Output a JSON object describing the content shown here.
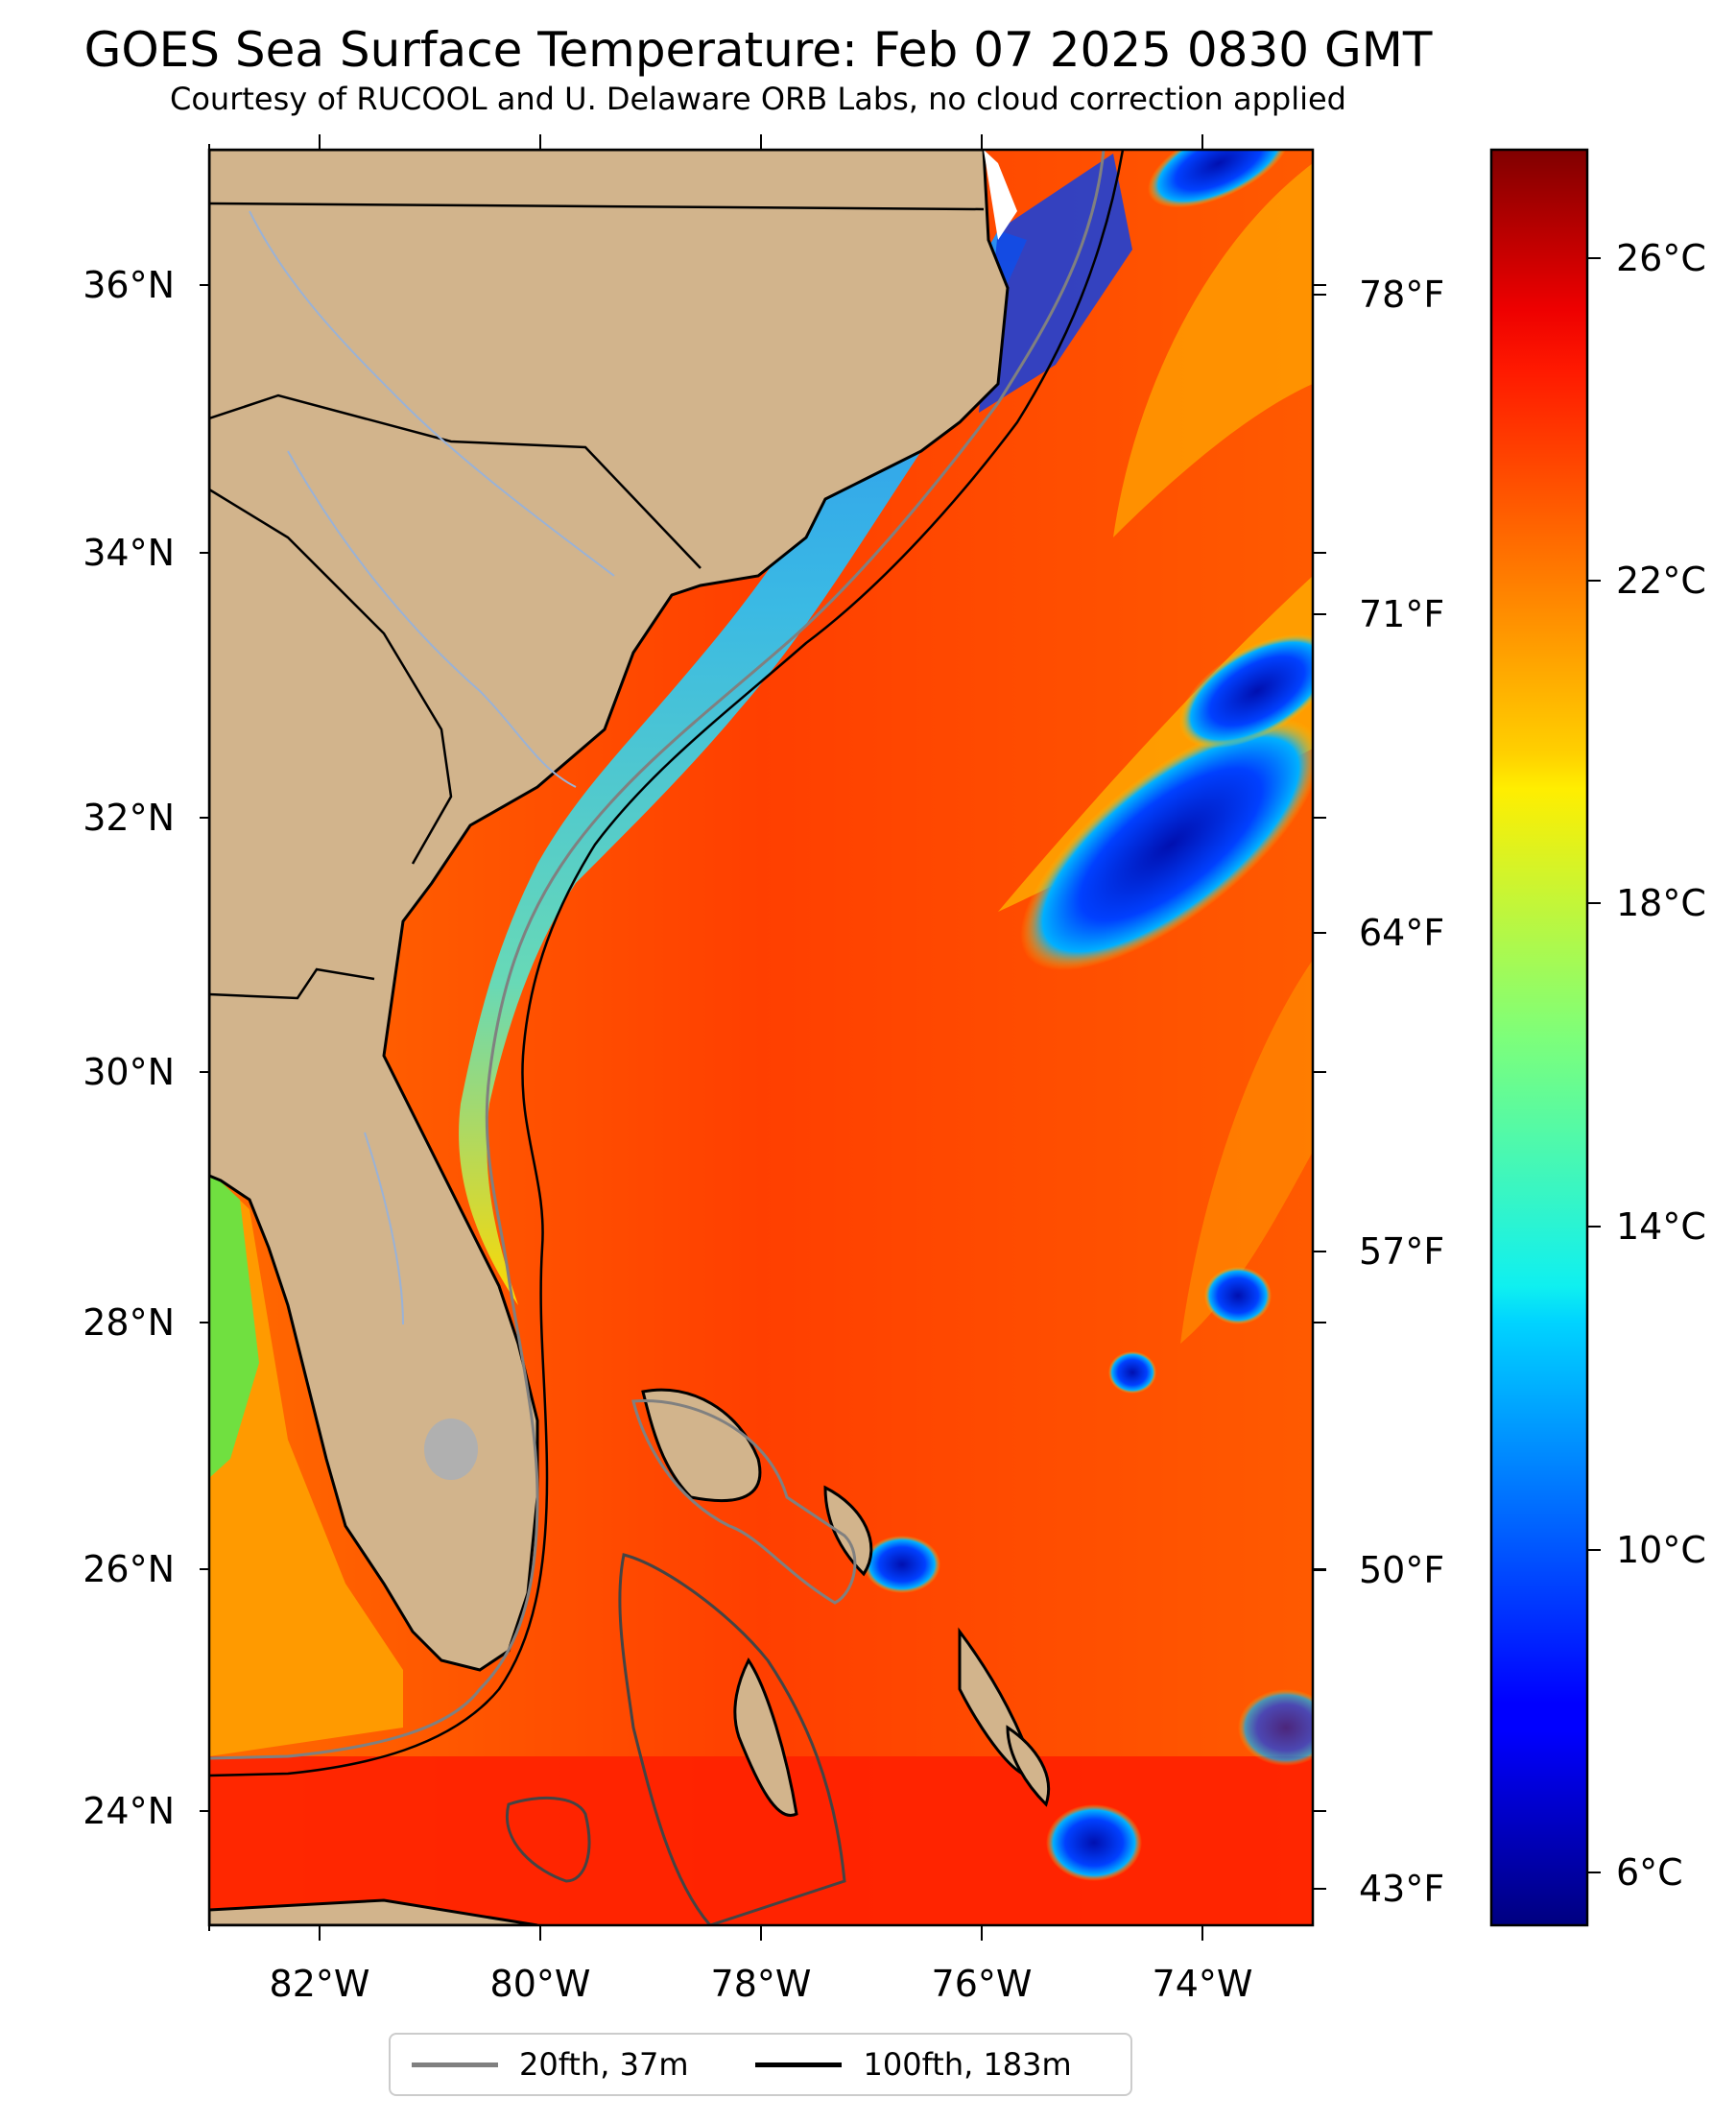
{
  "title": "GOES Sea Surface Temperature: Feb 07 2025 0830 GMT",
  "subtitle": "Courtesy of RUCOOL and U. Delaware ORB Labs, no cloud correction applied",
  "map": {
    "lon_range": [
      -83,
      -73
    ],
    "lat_range": [
      23.1,
      37.0
    ],
    "lon_ticks": [
      {
        "value": -82,
        "label": "82°W"
      },
      {
        "value": -80,
        "label": "80°W"
      },
      {
        "value": -78,
        "label": "78°W"
      },
      {
        "value": -76,
        "label": "76°W"
      },
      {
        "value": -74,
        "label": "74°W"
      }
    ],
    "lat_ticks": [
      {
        "value": 36,
        "label": "36°N"
      },
      {
        "value": 34,
        "label": "34°N"
      },
      {
        "value": 32,
        "label": "32°N"
      },
      {
        "value": 30,
        "label": "30°N"
      },
      {
        "value": 28,
        "label": "28°N"
      },
      {
        "value": 26,
        "label": "26°N"
      },
      {
        "value": 24,
        "label": "24°N"
      }
    ],
    "fahrenheit_ticks": [
      {
        "value": 78,
        "label": "78°F"
      },
      {
        "value": 71,
        "label": "71°F"
      },
      {
        "value": 64,
        "label": "64°F"
      },
      {
        "value": 57,
        "label": "57°F"
      },
      {
        "value": 50,
        "label": "50°F"
      },
      {
        "value": 43,
        "label": "43°F"
      }
    ],
    "colors": {
      "land": "#d2b48c",
      "gulf_stream": "#ff3a00",
      "shelf_water": "#40c8f0",
      "cloud_blue": "#0018c8",
      "no_data": "#ffffff"
    }
  },
  "colorbar": {
    "range_c": [
      5.5,
      27.5
    ],
    "cmap": "jet",
    "ticks": [
      {
        "value": 26,
        "label": "26°C"
      },
      {
        "value": 22,
        "label": "22°C"
      },
      {
        "value": 18,
        "label": "18°C"
      },
      {
        "value": 14,
        "label": "14°C"
      },
      {
        "value": 10,
        "label": "10°C"
      },
      {
        "value": 6,
        "label": "6°C"
      }
    ]
  },
  "legend": {
    "items": [
      {
        "label": "20fth, 37m",
        "color": "#808080"
      },
      {
        "label": "100fth, 183m",
        "color": "#000000"
      }
    ]
  }
}
